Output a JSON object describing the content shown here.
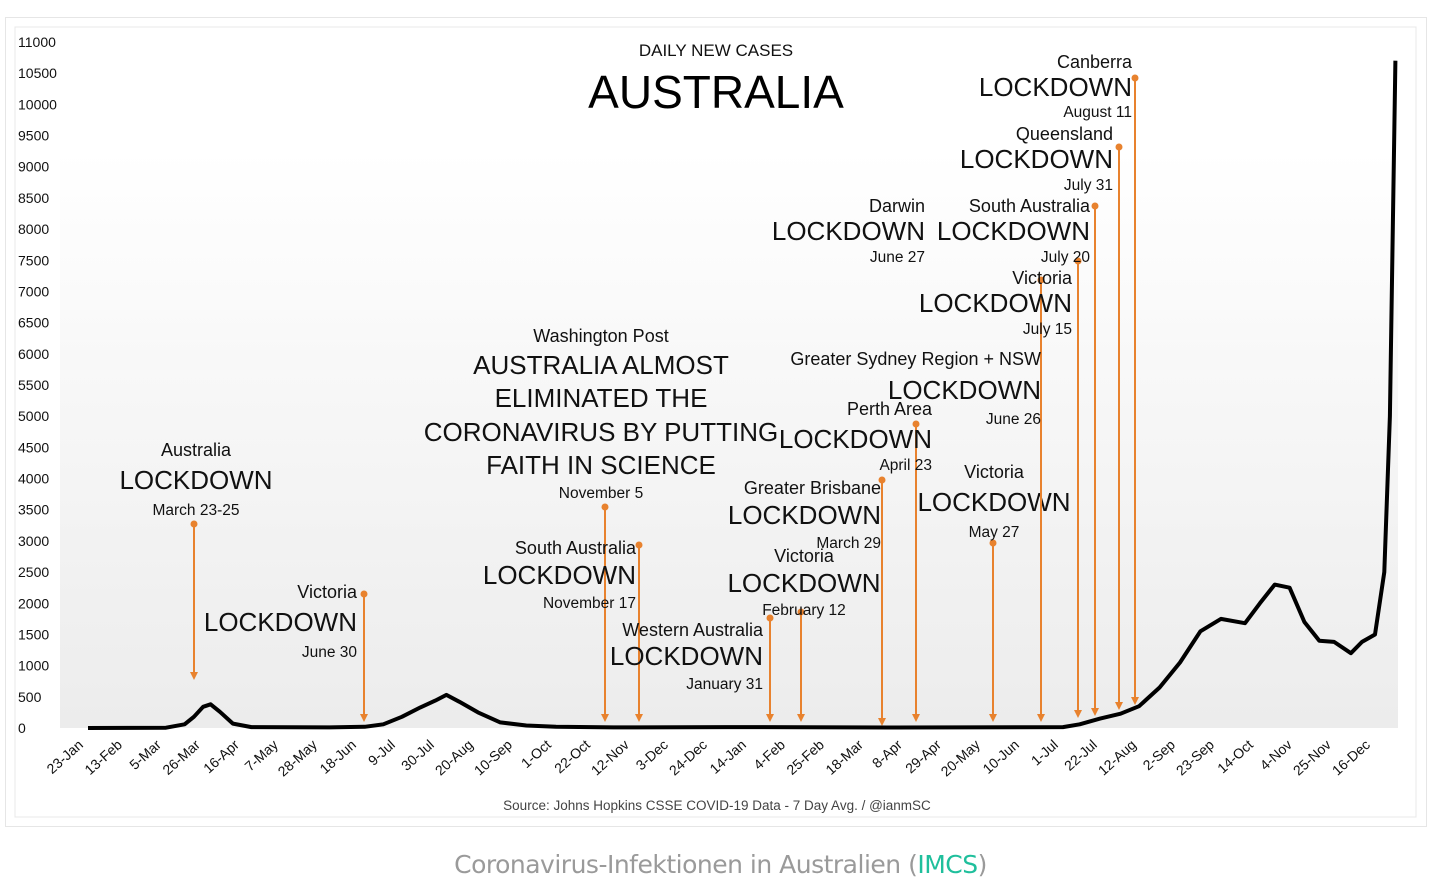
{
  "chart_data": {
    "type": "line",
    "title": "AUSTRALIA",
    "subtitle": "DAILY NEW CASES",
    "source": "Source: Johns Hopkins CSSE COVID-19 Data - 7 Day Avg. / @ianmSC",
    "xlabel": "",
    "ylabel": "",
    "ylim": [
      0,
      11000
    ],
    "yticks": [
      0,
      500,
      1000,
      1500,
      2000,
      2500,
      3000,
      3500,
      4000,
      4500,
      5000,
      5500,
      6000,
      6500,
      7000,
      7500,
      8000,
      8500,
      9000,
      9500,
      10000,
      10500,
      11000
    ],
    "xtick_labels": [
      "23-Jan",
      "13-Feb",
      "5-Mar",
      "26-Mar",
      "16-Apr",
      "7-May",
      "28-May",
      "18-Jun",
      "9-Jul",
      "30-Jul",
      "20-Aug",
      "10-Sep",
      "1-Oct",
      "22-Oct",
      "12-Nov",
      "3-Dec",
      "24-Dec",
      "14-Jan",
      "4-Feb",
      "25-Feb",
      "18-Mar",
      "8-Apr",
      "29-Apr",
      "20-May",
      "10-Jun",
      "1-Jul",
      "22-Jul",
      "12-Aug",
      "2-Sep",
      "23-Sep",
      "14-Oct",
      "4-Nov",
      "25-Nov",
      "16-Dec"
    ],
    "xtick_dates": [
      "2020-01-23",
      "2021-12-16"
    ],
    "grid": false,
    "line_color": "#000000",
    "annotation_color": "#e8822e",
    "series": [
      {
        "points": [
          [
            "2020-01-23",
            0
          ],
          [
            "2020-03-05",
            5
          ],
          [
            "2020-03-15",
            60
          ],
          [
            "2020-03-20",
            180
          ],
          [
            "2020-03-25",
            340
          ],
          [
            "2020-03-29",
            380
          ],
          [
            "2020-04-03",
            260
          ],
          [
            "2020-04-10",
            70
          ],
          [
            "2020-04-20",
            15
          ],
          [
            "2020-06-01",
            10
          ],
          [
            "2020-06-20",
            20
          ],
          [
            "2020-06-30",
            60
          ],
          [
            "2020-07-10",
            180
          ],
          [
            "2020-07-20",
            330
          ],
          [
            "2020-07-28",
            440
          ],
          [
            "2020-08-03",
            530
          ],
          [
            "2020-08-10",
            420
          ],
          [
            "2020-08-20",
            250
          ],
          [
            "2020-09-01",
            90
          ],
          [
            "2020-09-15",
            40
          ],
          [
            "2020-10-01",
            20
          ],
          [
            "2020-11-01",
            10
          ],
          [
            "2021-01-01",
            15
          ],
          [
            "2021-04-01",
            8
          ],
          [
            "2021-07-01",
            15
          ],
          [
            "2021-07-10",
            60
          ],
          [
            "2021-07-21",
            150
          ],
          [
            "2021-08-01",
            230
          ],
          [
            "2021-08-11",
            350
          ],
          [
            "2021-08-22",
            650
          ],
          [
            "2021-09-02",
            1050
          ],
          [
            "2021-09-13",
            1550
          ],
          [
            "2021-09-24",
            1750
          ],
          [
            "2021-10-07",
            1680
          ],
          [
            "2021-10-15",
            2000
          ],
          [
            "2021-10-23",
            2300
          ],
          [
            "2021-10-31",
            2250
          ],
          [
            "2021-11-08",
            1700
          ],
          [
            "2021-11-16",
            1400
          ],
          [
            "2021-11-24",
            1380
          ],
          [
            "2021-12-03",
            1200
          ],
          [
            "2021-12-09",
            1380
          ],
          [
            "2021-12-16",
            1500
          ],
          [
            "2021-12-21",
            2500
          ],
          [
            "2021-12-24",
            5000
          ],
          [
            "2021-12-27",
            10700
          ]
        ]
      }
    ],
    "annotations": [
      {
        "lines": [
          "Australia",
          "LOCKDOWN",
          "March 23-25"
        ]
      },
      {
        "lines": [
          "Victoria",
          "LOCKDOWN",
          "June 30"
        ]
      },
      {
        "lines": [
          "Washington Post",
          "AUSTRALIA ALMOST",
          "ELIMINATED THE",
          "CORONAVIRUS BY PUTTING",
          "FAITH IN SCIENCE",
          "November 5"
        ]
      },
      {
        "lines": [
          "South Australia",
          "LOCKDOWN",
          "November 17"
        ]
      },
      {
        "lines": [
          "Western Australia",
          "LOCKDOWN",
          "January 31"
        ]
      },
      {
        "lines": [
          "Victoria",
          "LOCKDOWN",
          "February 12"
        ]
      },
      {
        "lines": [
          "Greater Brisbane",
          "LOCKDOWN",
          "March 29"
        ]
      },
      {
        "lines": [
          "Perth Area",
          "LOCKDOWN",
          "April 23"
        ]
      },
      {
        "lines": [
          "Victoria",
          "LOCKDOWN",
          "May 27"
        ]
      },
      {
        "lines": [
          "Greater Sydney Region + NSW",
          "LOCKDOWN",
          "June 26"
        ]
      },
      {
        "lines": [
          "Darwin",
          "LOCKDOWN",
          "June 27"
        ]
      },
      {
        "lines": [
          "Victoria",
          "LOCKDOWN",
          "July 15"
        ]
      },
      {
        "lines": [
          "South Australia",
          "LOCKDOWN",
          "July 20"
        ]
      },
      {
        "lines": [
          "Queensland",
          "LOCKDOWN",
          "July 31"
        ]
      },
      {
        "lines": [
          "Canberra",
          "LOCKDOWN",
          "August 11"
        ]
      }
    ]
  },
  "caption": {
    "text": "Coronavirus-Infektionen in Australien (",
    "source_link": "IMCS",
    "close": ")",
    "link_color": "#1fbf9c"
  }
}
